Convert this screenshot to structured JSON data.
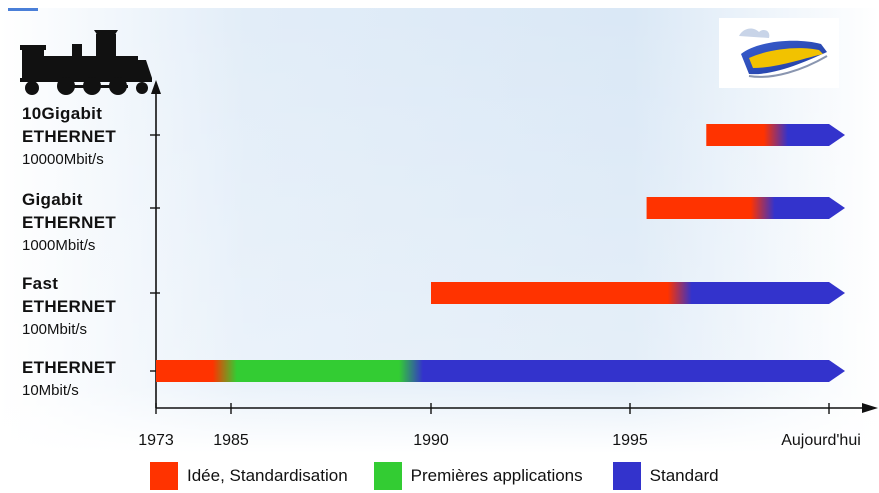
{
  "chart_data": {
    "type": "timeline-bar",
    "title": "",
    "xlabel": "",
    "ylabel": "",
    "x_ticks": [
      "1973",
      "1985",
      "1990",
      "1995",
      "Aujourd'hui"
    ],
    "categories": [
      {
        "name_lines": [
          "ETHERNET"
        ],
        "speed": "10Mbit/s"
      },
      {
        "name_lines": [
          "Fast",
          "ETHERNET"
        ],
        "speed": "100Mbit/s"
      },
      {
        "name_lines": [
          "Gigabit",
          "ETHERNET"
        ],
        "speed": "1000Mbit/s"
      },
      {
        "name_lines": [
          "10Gigabit",
          "ETHERNET"
        ],
        "speed": "10000Mbit/s"
      }
    ],
    "bars": [
      {
        "technology": "ETHERNET",
        "start": 1973,
        "stages": [
          {
            "stage": "Idée, Standardisation",
            "from": 1973,
            "to": 1984
          },
          {
            "stage": "Premières applications",
            "from": 1984,
            "to": 1989.5
          },
          {
            "stage": "Standard",
            "from": 1989.5,
            "to": 2001
          }
        ]
      },
      {
        "technology": "Fast ETHERNET",
        "start": 1990,
        "stages": [
          {
            "stage": "Idée, Standardisation",
            "from": 1990,
            "to": 1996.5
          },
          {
            "stage": "Standard",
            "from": 1996.5,
            "to": 2001
          }
        ]
      },
      {
        "technology": "Gigabit ETHERNET",
        "start": 1995.5,
        "stages": [
          {
            "stage": "Idée, Standardisation",
            "from": 1995.5,
            "to": 1999
          },
          {
            "stage": "Standard",
            "from": 1999,
            "to": 2001
          }
        ]
      },
      {
        "technology": "10Gigabit ETHERNET",
        "start": 1997.3,
        "stages": [
          {
            "stage": "Idée, Standardisation",
            "from": 1997.3,
            "to": 1999.4
          },
          {
            "stage": "Standard",
            "from": 1999.4,
            "to": 2001
          }
        ]
      }
    ],
    "legend": [
      {
        "label": "Idée, Standardisation",
        "color": "#ff3300"
      },
      {
        "label": "Premières applications",
        "color": "#33cc33"
      },
      {
        "label": "Standard",
        "color": "#3333cc"
      }
    ],
    "legend_position": "bottom",
    "grid": false
  },
  "illustrations": {
    "top_left_icon": "steam-locomotive-icon",
    "top_right_icon": "high-speed-train-icon"
  }
}
